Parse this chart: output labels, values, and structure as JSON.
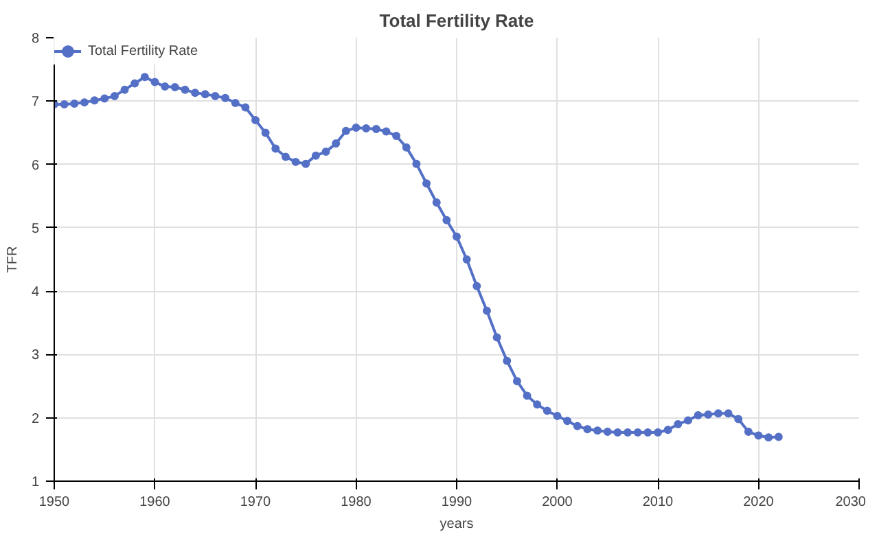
{
  "chart_data": {
    "type": "line",
    "title": "Total Fertility Rate",
    "xlabel": "years",
    "ylabel": "TFR",
    "x": [
      1950,
      1951,
      1952,
      1953,
      1954,
      1955,
      1956,
      1957,
      1958,
      1959,
      1960,
      1961,
      1962,
      1963,
      1964,
      1965,
      1966,
      1967,
      1968,
      1969,
      1970,
      1971,
      1972,
      1973,
      1974,
      1975,
      1976,
      1977,
      1978,
      1979,
      1980,
      1981,
      1982,
      1983,
      1984,
      1985,
      1986,
      1987,
      1988,
      1989,
      1990,
      1991,
      1992,
      1993,
      1994,
      1995,
      1996,
      1997,
      1998,
      1999,
      2000,
      2001,
      2002,
      2003,
      2004,
      2005,
      2006,
      2007,
      2008,
      2009,
      2010,
      2011,
      2012,
      2013,
      2014,
      2015,
      2016,
      2017,
      2018,
      2019,
      2020,
      2021,
      2022
    ],
    "series": [
      {
        "name": "Total Fertility Rate",
        "color": "#5470c6",
        "values": [
          6.95,
          6.95,
          6.96,
          6.98,
          7.01,
          7.04,
          7.08,
          7.18,
          7.28,
          7.38,
          7.3,
          7.23,
          7.22,
          7.18,
          7.13,
          7.11,
          7.08,
          7.05,
          6.97,
          6.9,
          6.7,
          6.5,
          6.25,
          6.12,
          6.04,
          6.01,
          6.14,
          6.2,
          6.33,
          6.53,
          6.58,
          6.57,
          6.56,
          6.52,
          6.45,
          6.27,
          6.01,
          5.7,
          5.4,
          5.12,
          4.86,
          4.5,
          4.08,
          3.69,
          3.27,
          2.9,
          2.58,
          2.35,
          2.21,
          2.11,
          2.03,
          1.95,
          1.87,
          1.82,
          1.8,
          1.78,
          1.77,
          1.77,
          1.77,
          1.77,
          1.77,
          1.81,
          1.9,
          1.96,
          2.04,
          2.05,
          2.07,
          2.07,
          1.98,
          1.78,
          1.72,
          1.69,
          1.7
        ]
      }
    ],
    "xlim": [
      1950,
      2030
    ],
    "xticks": [
      1950,
      1960,
      1970,
      1980,
      1990,
      2000,
      2010,
      2020,
      2030
    ],
    "ylim": [
      1,
      8
    ],
    "yticks": [
      1,
      2,
      3,
      4,
      5,
      6,
      7,
      8
    ],
    "grid": true,
    "legend": "top left",
    "marker": "circle",
    "line_style": "solid"
  }
}
